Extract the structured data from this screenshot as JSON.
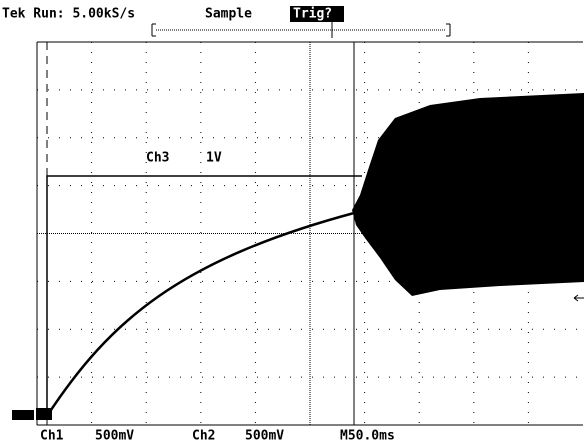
{
  "status_bar": {
    "mode": "Tek Run: 5.00kS/s",
    "acquisition": "Sample",
    "trigger_state": "Trig?"
  },
  "waveform_labels": {
    "channel": "Ch3",
    "scale": "1V"
  },
  "readout": {
    "ch1": "Ch1",
    "ch1_scale": "500mV",
    "ch2": "Ch2",
    "ch2_scale": "500mV",
    "timebase": "M50.0ms"
  }
}
